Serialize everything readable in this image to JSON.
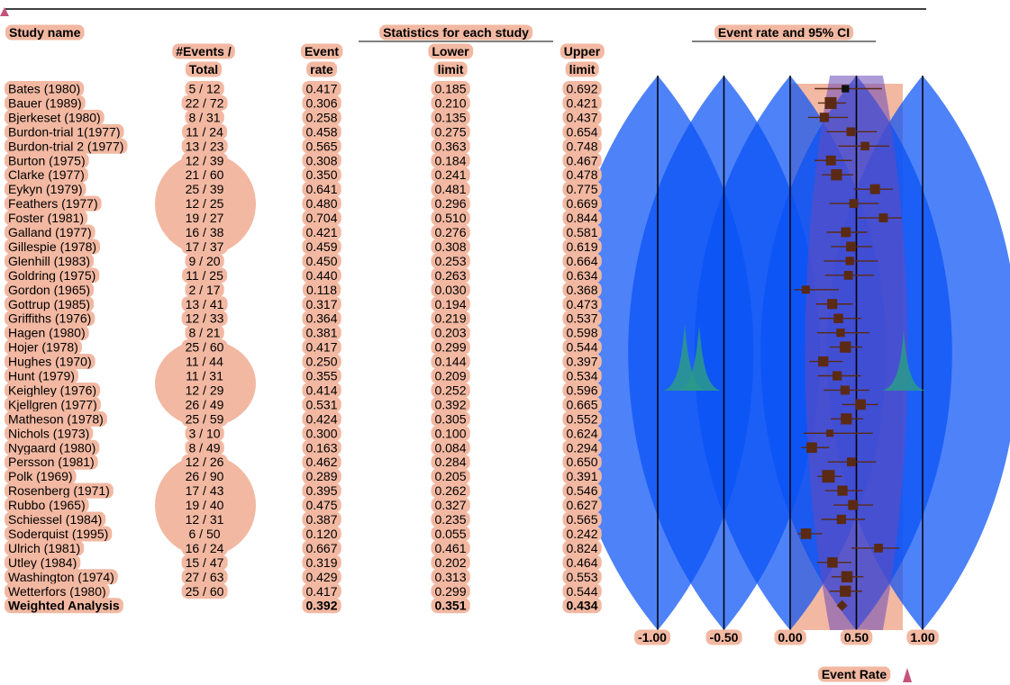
{
  "colors": {
    "highlight": "#f2b8a2",
    "blue_lens": "#0a52f5",
    "purple_band": "#6a48b8",
    "marker": "#5a2a14",
    "teal_peak": "#2a9a8a"
  },
  "headers": {
    "study_name": "Study name",
    "stats_group": "Statistics for each study",
    "ci_group": "Event rate and 95% CI",
    "events_l1": "#Events /",
    "events_l2": "Total",
    "rate_l1": "Event",
    "rate_l2": "rate",
    "lower_l1": "Lower",
    "lower_l2": "limit",
    "upper_l1": "Upper",
    "upper_l2": "limit"
  },
  "chart_data": {
    "type": "forest",
    "x_axis": {
      "label": "Event Rate",
      "ticks": [
        "-1.00",
        "-0.50",
        "0.00",
        "0.50",
        "1.00"
      ],
      "tick_values": [
        -1,
        -0.5,
        0,
        0.5,
        1
      ],
      "range": [
        -1,
        1
      ]
    },
    "studies": [
      {
        "name": "Bates (1980)",
        "events": "5 / 12",
        "rate": "0.417",
        "lower": "0.185",
        "upper": "0.692"
      },
      {
        "name": "Bauer (1989)",
        "events": "22 / 72",
        "rate": "0.306",
        "lower": "0.210",
        "upper": "0.421"
      },
      {
        "name": "Bjerkeset (1980)",
        "events": "8 / 31",
        "rate": "0.258",
        "lower": "0.135",
        "upper": "0.437"
      },
      {
        "name": "Burdon-trial 1(1977)",
        "events": "11 / 24",
        "rate": "0.458",
        "lower": "0.275",
        "upper": "0.654"
      },
      {
        "name": "Burdon-trial 2 (1977)",
        "events": "13 / 23",
        "rate": "0.565",
        "lower": "0.363",
        "upper": "0.748"
      },
      {
        "name": "Burton (1975)",
        "events": "12 / 39",
        "rate": "0.308",
        "lower": "0.184",
        "upper": "0.467"
      },
      {
        "name": "Clarke (1977)",
        "events": "21 / 60",
        "rate": "0.350",
        "lower": "0.241",
        "upper": "0.478"
      },
      {
        "name": "Eykyn (1979)",
        "events": "25 / 39",
        "rate": "0.641",
        "lower": "0.481",
        "upper": "0.775"
      },
      {
        "name": "Feathers (1977)",
        "events": "12 / 25",
        "rate": "0.480",
        "lower": "0.296",
        "upper": "0.669"
      },
      {
        "name": "Foster (1981)",
        "events": "19 / 27",
        "rate": "0.704",
        "lower": "0.510",
        "upper": "0.844"
      },
      {
        "name": "Galland (1977)",
        "events": "16 / 38",
        "rate": "0.421",
        "lower": "0.276",
        "upper": "0.581"
      },
      {
        "name": "Gillespie (1978)",
        "events": "17 / 37",
        "rate": "0.459",
        "lower": "0.308",
        "upper": "0.619"
      },
      {
        "name": "Glenhill (1983)",
        "events": "9 / 20",
        "rate": "0.450",
        "lower": "0.253",
        "upper": "0.664"
      },
      {
        "name": "Goldring (1975)",
        "events": "11 / 25",
        "rate": "0.440",
        "lower": "0.263",
        "upper": "0.634"
      },
      {
        "name": "Gordon (1965)",
        "events": "2 / 17",
        "rate": "0.118",
        "lower": "0.030",
        "upper": "0.368"
      },
      {
        "name": "Gottrup (1985)",
        "events": "13 / 41",
        "rate": "0.317",
        "lower": "0.194",
        "upper": "0.473"
      },
      {
        "name": "Griffiths (1976)",
        "events": "12 / 33",
        "rate": "0.364",
        "lower": "0.219",
        "upper": "0.537"
      },
      {
        "name": "Hagen (1980)",
        "events": "8 / 21",
        "rate": "0.381",
        "lower": "0.203",
        "upper": "0.598"
      },
      {
        "name": "Hojer (1978)",
        "events": "25 / 60",
        "rate": "0.417",
        "lower": "0.299",
        "upper": "0.544"
      },
      {
        "name": "Hughes (1970)",
        "events": "11 / 44",
        "rate": "0.250",
        "lower": "0.144",
        "upper": "0.397"
      },
      {
        "name": "Hunt (1979)",
        "events": "11 / 31",
        "rate": "0.355",
        "lower": "0.209",
        "upper": "0.534"
      },
      {
        "name": "Keighley (1976)",
        "events": "12 / 29",
        "rate": "0.414",
        "lower": "0.252",
        "upper": "0.596"
      },
      {
        "name": "Kjellgren (1977)",
        "events": "26 / 49",
        "rate": "0.531",
        "lower": "0.392",
        "upper": "0.665"
      },
      {
        "name": "Matheson (1978)",
        "events": "25 / 59",
        "rate": "0.424",
        "lower": "0.305",
        "upper": "0.552"
      },
      {
        "name": "Nichols (1973)",
        "events": "3 / 10",
        "rate": "0.300",
        "lower": "0.100",
        "upper": "0.624"
      },
      {
        "name": "Nygaard (1980)",
        "events": "8 / 49",
        "rate": "0.163",
        "lower": "0.084",
        "upper": "0.294"
      },
      {
        "name": "Persson (1981)",
        "events": "12 / 26",
        "rate": "0.462",
        "lower": "0.284",
        "upper": "0.650"
      },
      {
        "name": "Polk (1969)",
        "events": "26 / 90",
        "rate": "0.289",
        "lower": "0.205",
        "upper": "0.391"
      },
      {
        "name": "Rosenberg (1971)",
        "events": "17 / 43",
        "rate": "0.395",
        "lower": "0.262",
        "upper": "0.546"
      },
      {
        "name": "Rubbo (1965)",
        "events": "19 / 40",
        "rate": "0.475",
        "lower": "0.327",
        "upper": "0.627"
      },
      {
        "name": "Schiessel (1984)",
        "events": "12 / 31",
        "rate": "0.387",
        "lower": "0.235",
        "upper": "0.565"
      },
      {
        "name": "Soderquist (1995)",
        "events": "6 / 50",
        "rate": "0.120",
        "lower": "0.055",
        "upper": "0.242"
      },
      {
        "name": "Ulrich (1981)",
        "events": "16 / 24",
        "rate": "0.667",
        "lower": "0.461",
        "upper": "0.824"
      },
      {
        "name": "Utley (1984)",
        "events": "15 / 47",
        "rate": "0.319",
        "lower": "0.202",
        "upper": "0.464"
      },
      {
        "name": "Washington (1974)",
        "events": "27 / 63",
        "rate": "0.429",
        "lower": "0.313",
        "upper": "0.553"
      },
      {
        "name": "Wetterfors (1980)",
        "events": "25 / 60",
        "rate": "0.417",
        "lower": "0.299",
        "upper": "0.544"
      }
    ],
    "summary": {
      "name": "Weighted Analysis",
      "rate": "0.392",
      "lower": "0.351",
      "upper": "0.434"
    }
  }
}
